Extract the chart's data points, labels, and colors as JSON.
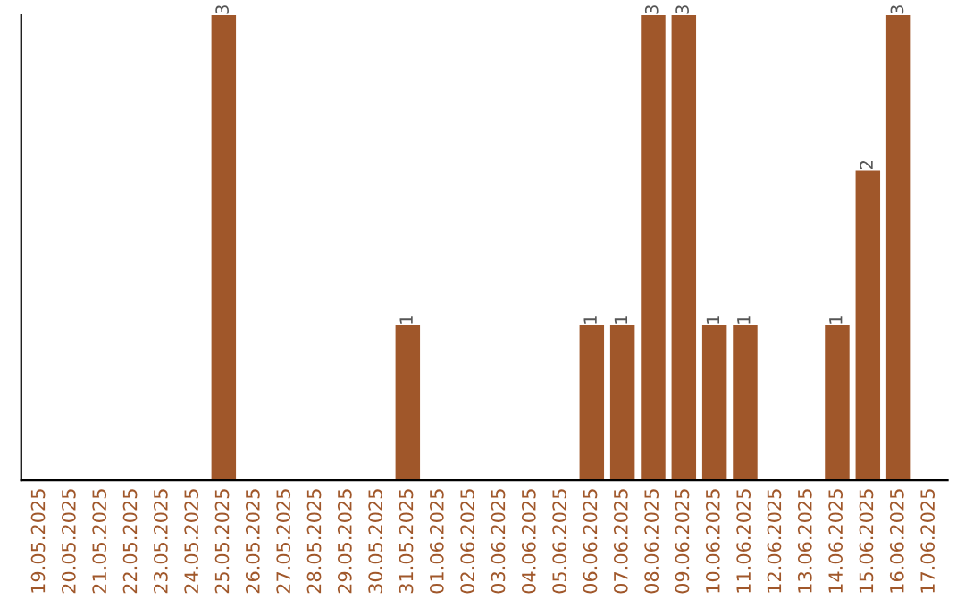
{
  "chart_data": {
    "type": "bar",
    "categories": [
      "19.05.2025",
      "20.05.2025",
      "21.05.2025",
      "22.05.2025",
      "23.05.2025",
      "24.05.2025",
      "25.05.2025",
      "26.05.2025",
      "27.05.2025",
      "28.05.2025",
      "29.05.2025",
      "30.05.2025",
      "31.05.2025",
      "01.06.2025",
      "02.06.2025",
      "03.06.2025",
      "04.06.2025",
      "05.06.2025",
      "06.06.2025",
      "07.06.2025",
      "08.06.2025",
      "09.06.2025",
      "10.06.2025",
      "11.06.2025",
      "12.06.2025",
      "13.06.2025",
      "14.06.2025",
      "15.06.2025",
      "16.06.2025",
      "17.06.2025"
    ],
    "values": [
      0,
      0,
      0,
      0,
      0,
      0,
      3,
      0,
      0,
      0,
      0,
      0,
      1,
      0,
      0,
      0,
      0,
      0,
      1,
      1,
      3,
      3,
      1,
      1,
      0,
      0,
      1,
      2,
      3,
      0
    ],
    "value_labels": [
      null,
      null,
      null,
      null,
      null,
      null,
      "3",
      null,
      null,
      null,
      null,
      null,
      "1",
      null,
      null,
      null,
      null,
      null,
      "1",
      "1",
      "3",
      "3",
      "1",
      "1",
      null,
      null,
      "1",
      "2",
      "3",
      null
    ],
    "color": "#a0572a",
    "tick_labels": "x",
    "grid": false
  }
}
